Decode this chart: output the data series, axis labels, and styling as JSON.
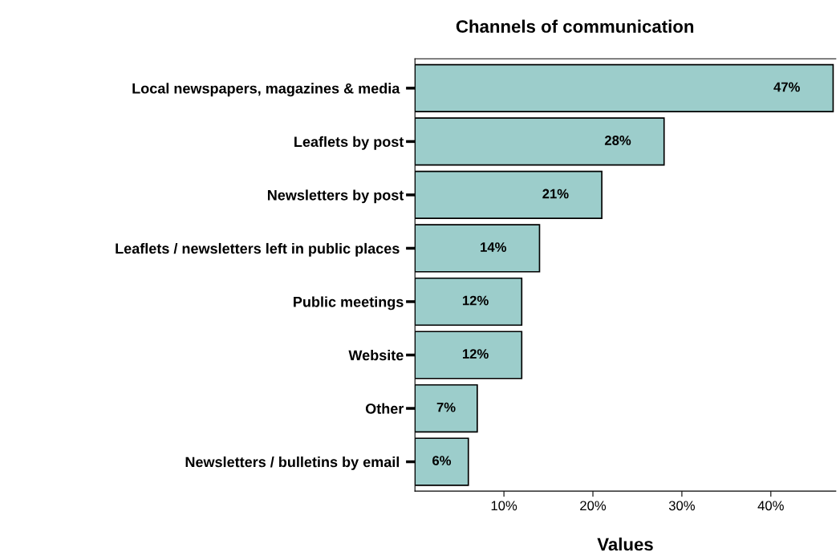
{
  "chart_data": {
    "type": "bar",
    "orientation": "horizontal",
    "title": "Channels of communication",
    "xlabel": "Values",
    "categories": [
      "Local newspapers, magazines & media ",
      "Leaflets by post",
      "Newsletters by post",
      "Leaflets / newsletters left in public places ",
      "Public meetings",
      "Website",
      "Other",
      "Newsletters / bulletins by email "
    ],
    "values": [
      47,
      28,
      21,
      14,
      12,
      12,
      7,
      6
    ],
    "value_labels": [
      "47%",
      "28%",
      "21%",
      "14%",
      "12%",
      "12%",
      "7%",
      "6%"
    ],
    "color": "#9ccdcb",
    "xlim": [
      0,
      47.3
    ],
    "xticks": [
      {
        "value": 10,
        "label": "10%"
      },
      {
        "value": 20,
        "label": "20%"
      },
      {
        "value": 30,
        "label": "30%"
      },
      {
        "value": 40,
        "label": "40%"
      }
    ],
    "grid": false,
    "legend": false
  }
}
